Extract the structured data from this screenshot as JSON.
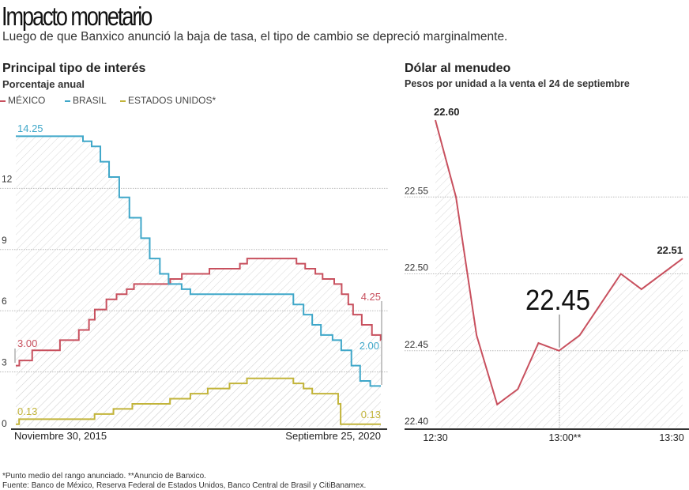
{
  "header": {
    "title": "Impacto monetario",
    "subtitle": "Luego de que Banxico anunció la baja de tasa, el tipo de cambio se depreció marginalmente."
  },
  "chart_data": [
    {
      "type": "line",
      "step": true,
      "title": "Principal tipo de interés",
      "subtitle": "Porcentaje anual",
      "legend_placement": "top-left",
      "x_range": [
        "2015-11-30",
        "2020-09-25"
      ],
      "x_tick_labels": [
        "Noviembre 30, 2015",
        "Septiembre 25, 2020"
      ],
      "ylim": [
        0,
        14.5
      ],
      "y_ticks": [
        0,
        3,
        6,
        9,
        12
      ],
      "grid": true,
      "series": [
        {
          "name": "MÉXICO",
          "color": "#c8505e",
          "start_label": "3.00",
          "end_label": "4.25",
          "steps": [
            [
              "2015-11-30",
              3.0
            ],
            [
              "2015-12-17",
              3.25
            ],
            [
              "2016-02-17",
              3.75
            ],
            [
              "2016-06-30",
              4.25
            ],
            [
              "2016-09-29",
              4.75
            ],
            [
              "2016-11-17",
              5.25
            ],
            [
              "2016-12-15",
              5.75
            ],
            [
              "2017-02-09",
              6.25
            ],
            [
              "2017-03-30",
              6.5
            ],
            [
              "2017-05-18",
              6.75
            ],
            [
              "2017-06-22",
              7.0
            ],
            [
              "2017-12-14",
              7.25
            ],
            [
              "2018-02-08",
              7.5
            ],
            [
              "2018-06-21",
              7.75
            ],
            [
              "2018-11-15",
              8.0
            ],
            [
              "2018-12-20",
              8.25
            ],
            [
              "2019-08-15",
              8.0
            ],
            [
              "2019-09-26",
              7.75
            ],
            [
              "2019-11-14",
              7.5
            ],
            [
              "2019-12-19",
              7.25
            ],
            [
              "2020-02-13",
              7.0
            ],
            [
              "2020-03-20",
              6.5
            ],
            [
              "2020-04-21",
              6.0
            ],
            [
              "2020-05-14",
              5.5
            ],
            [
              "2020-06-25",
              5.0
            ],
            [
              "2020-08-13",
              4.5
            ],
            [
              "2020-09-24",
              4.25
            ]
          ]
        },
        {
          "name": "BRASIL",
          "color": "#3fa7c9",
          "start_label": "14.25",
          "end_label": "2.00",
          "steps": [
            [
              "2015-11-30",
              14.25
            ],
            [
              "2016-10-19",
              14.0
            ],
            [
              "2016-11-30",
              13.75
            ],
            [
              "2017-01-11",
              13.0
            ],
            [
              "2017-02-22",
              12.25
            ],
            [
              "2017-04-12",
              11.25
            ],
            [
              "2017-05-31",
              10.25
            ],
            [
              "2017-07-26",
              9.25
            ],
            [
              "2017-09-06",
              8.25
            ],
            [
              "2017-10-25",
              7.5
            ],
            [
              "2017-12-06",
              7.0
            ],
            [
              "2018-02-07",
              6.75
            ],
            [
              "2018-03-21",
              6.5
            ],
            [
              "2019-07-31",
              6.0
            ],
            [
              "2019-09-18",
              5.5
            ],
            [
              "2019-10-30",
              5.0
            ],
            [
              "2019-12-11",
              4.5
            ],
            [
              "2020-02-05",
              4.25
            ],
            [
              "2020-03-18",
              3.75
            ],
            [
              "2020-05-06",
              3.0
            ],
            [
              "2020-06-17",
              2.25
            ],
            [
              "2020-08-05",
              2.0
            ]
          ]
        },
        {
          "name": "ESTADOS UNIDOS*",
          "color": "#c2b43a",
          "start_label": "0.13",
          "end_label": "0.13",
          "steps": [
            [
              "2015-11-30",
              0.125
            ],
            [
              "2015-12-16",
              0.375
            ],
            [
              "2016-12-14",
              0.625
            ],
            [
              "2017-03-15",
              0.875
            ],
            [
              "2017-06-14",
              1.125
            ],
            [
              "2017-12-13",
              1.375
            ],
            [
              "2018-03-21",
              1.625
            ],
            [
              "2018-06-13",
              1.875
            ],
            [
              "2018-09-26",
              2.125
            ],
            [
              "2018-12-19",
              2.375
            ],
            [
              "2019-07-31",
              2.125
            ],
            [
              "2019-09-18",
              1.875
            ],
            [
              "2019-10-30",
              1.625
            ],
            [
              "2020-03-03",
              1.125
            ],
            [
              "2020-03-15",
              0.125
            ]
          ]
        }
      ]
    },
    {
      "type": "line",
      "title": "Dólar al menudeo",
      "subtitle": "Pesos por unidad a la venta el 24 de septiembre",
      "x": [
        "12:30",
        "12:32",
        "12:35",
        "12:37",
        "12:40",
        "12:42",
        "12:45",
        "12:47",
        "12:50",
        "12:52",
        "12:55",
        "13:00"
      ],
      "x_tick_labels": [
        "12:30",
        "13:00**",
        "13:30"
      ],
      "x_minutes": [
        0,
        2.5,
        5,
        7.5,
        10,
        12.5,
        15,
        17.5,
        20,
        22.5,
        25,
        30
      ],
      "ylim": [
        22.4,
        22.6
      ],
      "y_tick_labels": [
        "22.40",
        "22.45",
        "22.50",
        "22.55"
      ],
      "y_ticks": [
        22.4,
        22.45,
        22.5,
        22.55
      ],
      "grid": true,
      "series": [
        {
          "color": "#c8505e",
          "values": [
            22.6,
            22.55,
            22.46,
            22.415,
            22.425,
            22.455,
            22.45,
            22.46,
            22.48,
            22.5,
            22.49,
            22.51
          ]
        }
      ],
      "annotations": {
        "start": "22.60",
        "end": "22.51",
        "highlight": "22.45"
      }
    }
  ],
  "footnotes": {
    "note": "*Punto medio del rango anunciado. **Anuncio de Banxico.",
    "source": "Fuente: Banco de México, Reserva Federal de Estados Unidos, Banco Central de Brasil y CitiBanamex."
  }
}
